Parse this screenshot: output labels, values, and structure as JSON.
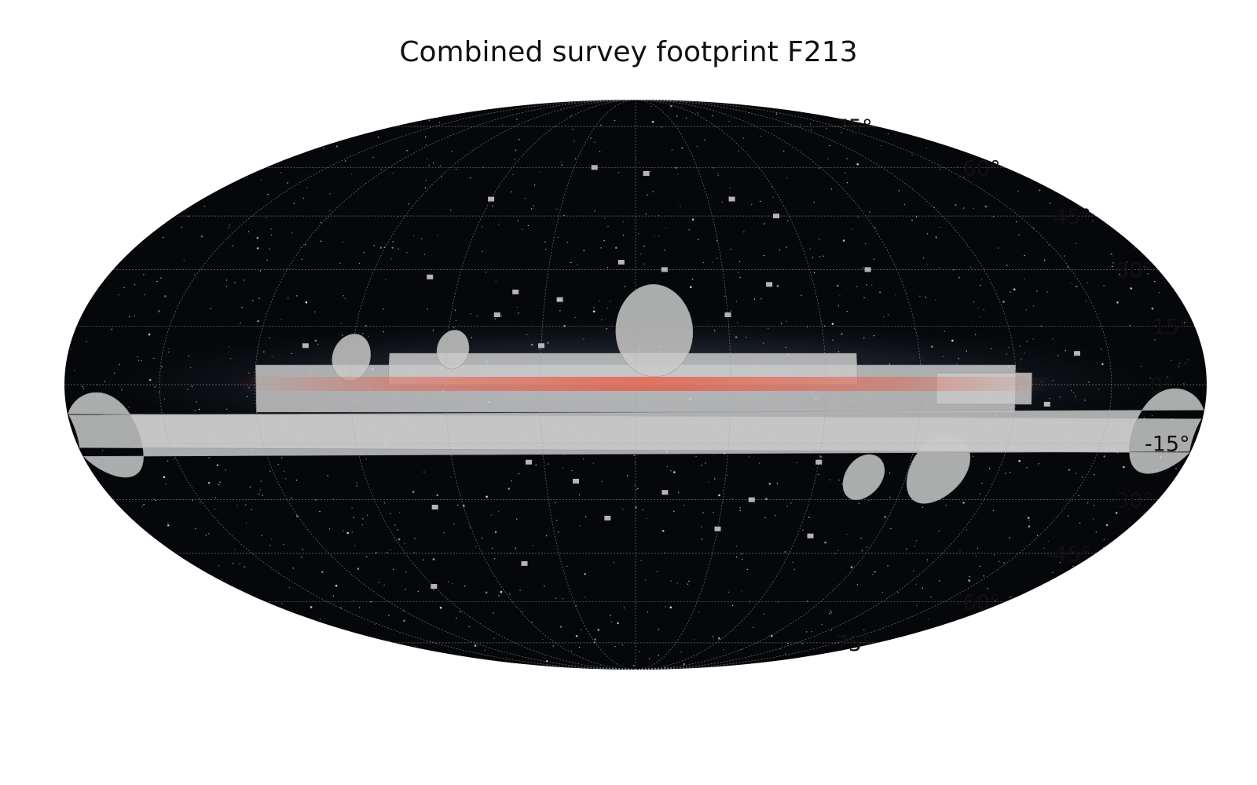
{
  "chart_data": {
    "type": "map",
    "projection": "mollweide",
    "title": "Combined survey footprint F213",
    "xlabel": "",
    "ylabel": "",
    "background": "all-sky Milky Way image (galactic coordinates)",
    "grid": true,
    "latitude_ticks": [
      {
        "value": 75,
        "label": "75°"
      },
      {
        "value": 60,
        "label": "60°"
      },
      {
        "value": 45,
        "label": "45°"
      },
      {
        "value": 30,
        "label": "30°"
      },
      {
        "value": 15,
        "label": "15°"
      },
      {
        "value": 0,
        "label": "0°"
      },
      {
        "value": -15,
        "label": "-15°"
      },
      {
        "value": -30,
        "label": "-30°"
      },
      {
        "value": -45,
        "label": "-45°"
      },
      {
        "value": -60,
        "label": "-60°"
      },
      {
        "value": -75,
        "label": "-75°"
      }
    ],
    "footprint": {
      "color": "#c9c9c9",
      "regions": [
        {
          "name": "plane",
          "l_range": [
            -120,
            120
          ],
          "b_range": [
            -7,
            5
          ]
        },
        {
          "name": "plane-upper",
          "l_range": [
            -70,
            78
          ],
          "b_range": [
            0,
            8
          ]
        },
        {
          "name": "bulge-cap",
          "center": [
            -6,
            14
          ],
          "radius": 12
        },
        {
          "name": "small-cap",
          "center": [
            58,
            9
          ],
          "radius": 5
        },
        {
          "name": "west-lobe",
          "center": [
            90,
            7
          ],
          "radius": 6
        },
        {
          "name": "east-arm",
          "l_range": [
            -125,
            -95
          ],
          "b_range": [
            -5,
            3
          ]
        },
        {
          "name": "lmc",
          "center": [
            -100,
            -22
          ],
          "radius": 9
        },
        {
          "name": "smc",
          "center": [
            -76,
            -24
          ],
          "radius": 6
        },
        {
          "name": "edge-west",
          "center": [
            170,
            -13
          ],
          "radius": 11
        },
        {
          "name": "edge-east",
          "center": [
            -170,
            -12
          ],
          "radius": 11
        }
      ],
      "isolated_fields": [
        [
          20,
          60
        ],
        [
          -5,
          58
        ],
        [
          -40,
          50
        ],
        [
          -55,
          45
        ],
        [
          60,
          50
        ],
        [
          5,
          32
        ],
        [
          -10,
          30
        ],
        [
          40,
          24
        ],
        [
          25,
          22
        ],
        [
          -45,
          26
        ],
        [
          -80,
          30
        ],
        [
          70,
          28
        ],
        [
          -30,
          18
        ],
        [
          45,
          18
        ],
        [
          30,
          10
        ],
        [
          -60,
          -20
        ],
        [
          80,
          -15
        ],
        [
          20,
          -25
        ],
        [
          35,
          -20
        ],
        [
          -10,
          -28
        ],
        [
          -40,
          -30
        ],
        [
          -30,
          -38
        ],
        [
          10,
          -35
        ],
        [
          70,
          -32
        ],
        [
          -65,
          -40
        ],
        [
          90,
          -55
        ],
        [
          45,
          -48
        ],
        [
          105,
          10
        ],
        [
          -130,
          -5
        ],
        [
          -140,
          8
        ]
      ]
    },
    "galactic_plane_glow_color": "#e9573f"
  }
}
